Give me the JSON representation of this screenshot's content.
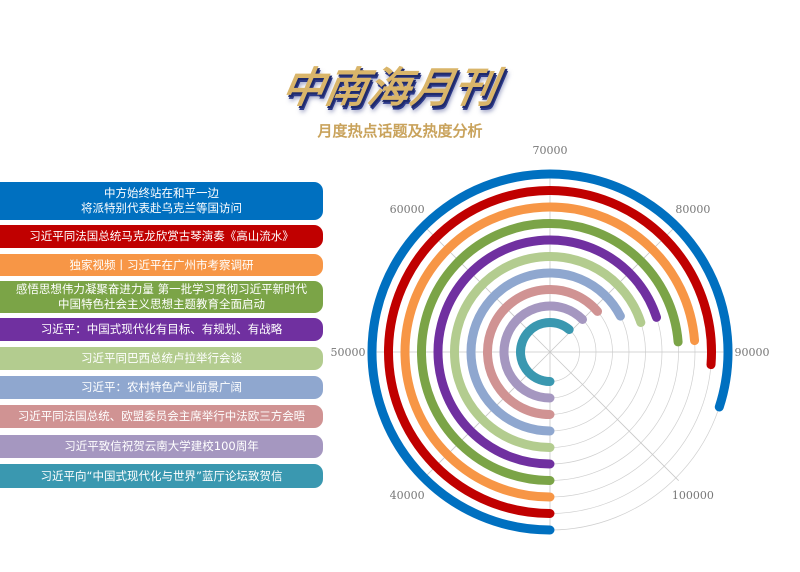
{
  "header": {
    "logo_text": "中南海月刊",
    "subtitle": "月度热点话题及热度分析"
  },
  "chart_data": {
    "type": "radial-bar",
    "angular_axis": {
      "range": [
        30000,
        110000
      ],
      "direction": "clockwise",
      "start": "bottom",
      "ticks": [
        40000,
        50000,
        60000,
        70000,
        80000,
        90000,
        100000
      ]
    },
    "grid": true,
    "legend_placement": "left",
    "series": [
      {
        "name": "中方始终站在和平一边\n将派特别代表赴乌克兰等国访问",
        "value": 94000,
        "color": "#0070c0"
      },
      {
        "name": "习近平同法国总统马克龙欣赏古琴演奏《高山流水》",
        "value": 91000,
        "color": "#c00000"
      },
      {
        "name": "独家视频丨习近平在广州市考察调研",
        "value": 89000,
        "color": "#f79646"
      },
      {
        "name": "感悟思想伟力凝聚奋进力量 第一批学习贯彻习近平新时代\n中国特色社会主义思想主题教育全面启动",
        "value": 89000,
        "color": "#7ba447"
      },
      {
        "name": "习近平：中国式现代化有目标、有规划、有战略",
        "value": 86000,
        "color": "#7030a0"
      },
      {
        "name": "习近平同巴西总统卢拉举行会谈",
        "value": 86000,
        "color": "#b3cc8f"
      },
      {
        "name": "习近平：农村特色产业前景广阔",
        "value": 84000,
        "color": "#8fa7cf"
      },
      {
        "name": "习近平同法国总统、欧盟委员会主席举行中法欧三方会晤",
        "value": 81000,
        "color": "#d09393"
      },
      {
        "name": "习近平致信祝贺云南大学建校100周年",
        "value": 80000,
        "color": "#a597c0"
      },
      {
        "name": "习近平向“中国式现代化与世界”蓝厅论坛致贺信",
        "value": 79000,
        "color": "#3a98b0"
      }
    ]
  }
}
